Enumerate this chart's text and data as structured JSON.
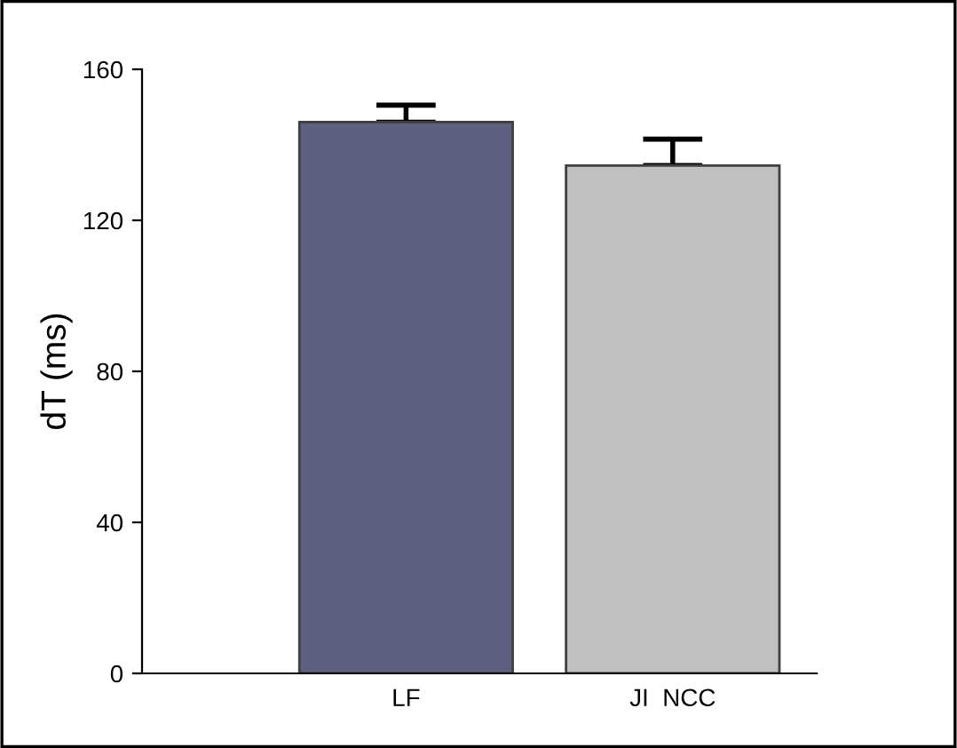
{
  "chart_data": {
    "type": "bar",
    "ylabel": "dT (ms)",
    "categories": [
      "LF",
      "JI  NCC"
    ],
    "values": [
      146,
      134.5
    ],
    "colors": [
      "#5f607f",
      "#c0c0c0"
    ],
    "errors": [
      [
        146,
        150.5
      ],
      [
        134.5,
        141.5
      ]
    ],
    "ylim": [
      0,
      160
    ],
    "yticks": [
      0,
      40,
      80,
      120,
      160
    ],
    "grid": false,
    "legend": false
  }
}
